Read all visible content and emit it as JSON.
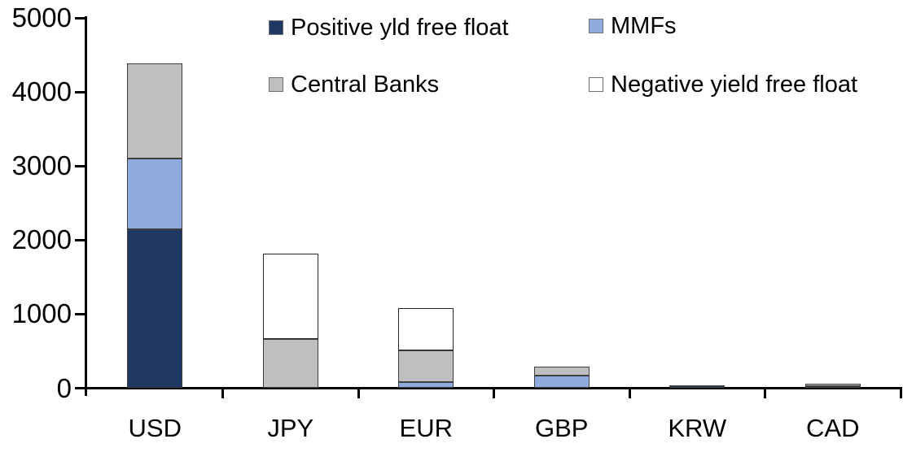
{
  "chart_data": {
    "type": "bar",
    "subtype": "stacked-vertical",
    "title": "",
    "xlabel": "",
    "ylabel": "",
    "categories": [
      "USD",
      "JPY",
      "EUR",
      "GBP",
      "KRW",
      "CAD"
    ],
    "series": [
      {
        "name": "Positive yld free float",
        "color": "#1F3864",
        "border": "#404040",
        "values": [
          2150,
          0,
          0,
          0,
          40,
          30
        ]
      },
      {
        "name": "MMFs",
        "color": "#8FAADC",
        "border": "#404040",
        "values": [
          950,
          0,
          80,
          170,
          0,
          0
        ]
      },
      {
        "name": "Central Banks",
        "color": "#BFBFBF",
        "border": "#404040",
        "values": [
          1290,
          660,
          430,
          120,
          0,
          30
        ]
      },
      {
        "name": "Negative yield free float",
        "color": "#FFFFFF",
        "border": "#262626",
        "values": [
          0,
          1160,
          570,
          0,
          0,
          0
        ]
      }
    ],
    "ylim": [
      0,
      5000
    ],
    "yticks": [
      0,
      1000,
      2000,
      3000,
      4000,
      5000
    ],
    "grid": false,
    "legend_position": "top",
    "axis_color": "#000000"
  }
}
